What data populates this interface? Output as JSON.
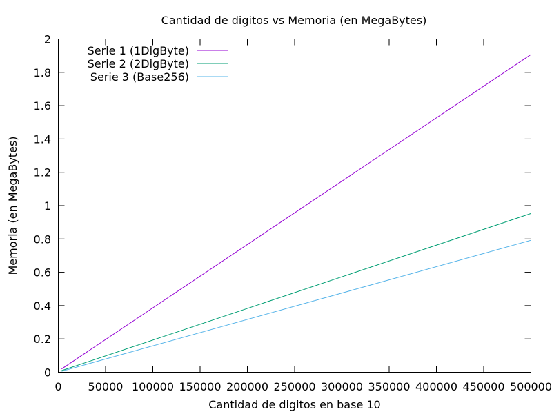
{
  "chart_data": {
    "type": "line",
    "title": "Cantidad de digitos vs Memoria (en MegaBytes)",
    "xlabel": "Cantidad de digitos en base 10",
    "ylabel": "Memoria (en MegaBytes)",
    "xlim": [
      0,
      500000
    ],
    "ylim": [
      0,
      2
    ],
    "xticks": [
      0,
      50000,
      100000,
      150000,
      200000,
      250000,
      300000,
      350000,
      400000,
      450000,
      500000
    ],
    "yticks": [
      0,
      0.2,
      0.4,
      0.6,
      0.8,
      1,
      1.2,
      1.4,
      1.6,
      1.8,
      2
    ],
    "xtick_labels": [
      "0",
      "50000",
      "100000",
      "150000",
      "200000",
      "250000",
      "300000",
      "350000",
      "400000",
      "450000",
      "500000"
    ],
    "ytick_labels": [
      "0",
      "0.2",
      "0.4",
      "0.6",
      "0.8",
      "1",
      "1.2",
      "1.4",
      "1.6",
      "1.8",
      "2"
    ],
    "grid": false,
    "legend_position": "top-left",
    "series": [
      {
        "name": "Serie 1 (1DigByte)",
        "color": "#9400d3",
        "x": [
          3500,
          500000
        ],
        "y": [
          0.02,
          1.907
        ]
      },
      {
        "name": "Serie 2 (2DigByte)",
        "color": "#009e73",
        "x": [
          3500,
          500000
        ],
        "y": [
          0.01,
          0.953
        ]
      },
      {
        "name": "Serie 3 (Base256)",
        "color": "#56b4e9",
        "x": [
          3500,
          500000
        ],
        "y": [
          0.006,
          0.792
        ]
      }
    ]
  }
}
